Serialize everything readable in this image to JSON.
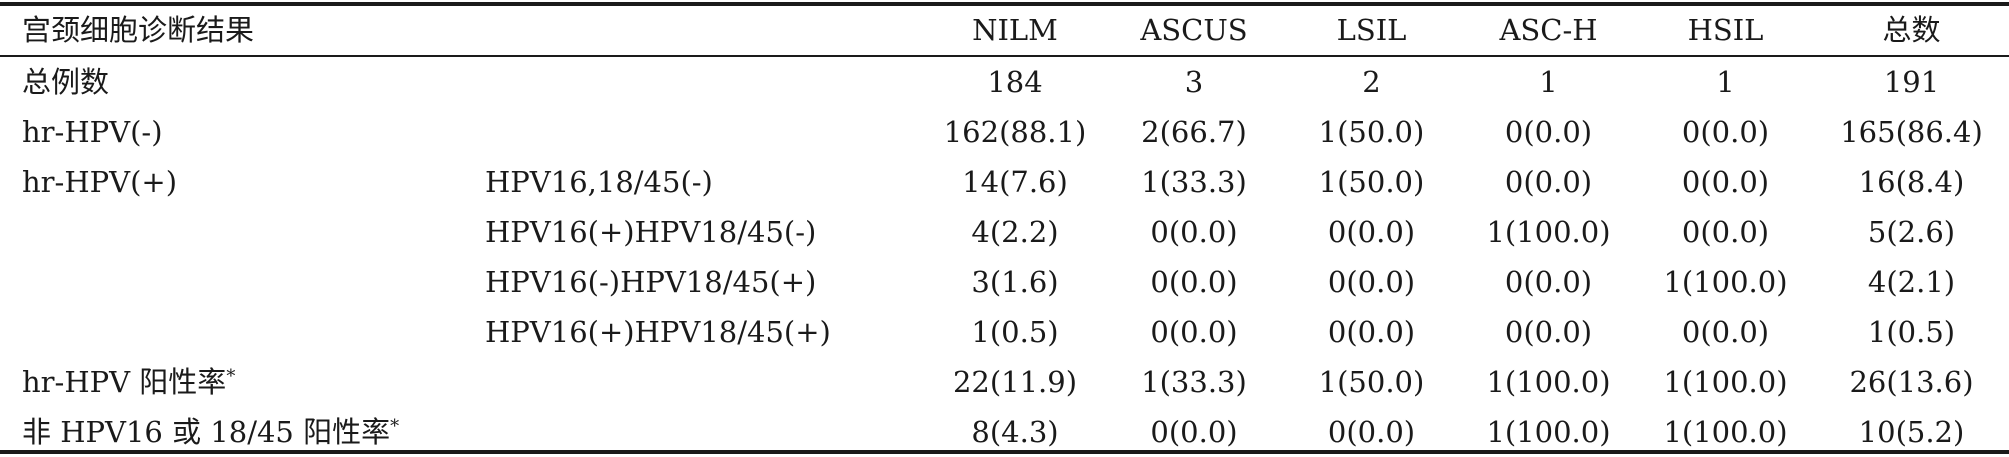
{
  "header": {
    "col0": "宫颈细胞诊断结果",
    "cols": [
      "NILM",
      "ASCUS",
      "LSIL",
      "ASC-H",
      "HSIL",
      "总数"
    ]
  },
  "rows": [
    {
      "label": "总例数",
      "sub": "",
      "vals": [
        "184",
        "3",
        "2",
        "1",
        "1",
        "191"
      ]
    },
    {
      "label": "hr-HPV(-)",
      "sub": "",
      "vals": [
        "162(88.1)",
        "2(66.7)",
        "1(50.0)",
        "0(0.0)",
        "0(0.0)",
        "165(86.4)"
      ]
    },
    {
      "label": "hr-HPV(+)",
      "sub": "HPV16,18/45(-)",
      "vals": [
        "14(7.6)",
        "1(33.3)",
        "1(50.0)",
        "0(0.0)",
        "0(0.0)",
        "16(8.4)"
      ]
    },
    {
      "label": "",
      "sub": "HPV16(+)HPV18/45(-)",
      "vals": [
        "4(2.2)",
        "0(0.0)",
        "0(0.0)",
        "1(100.0)",
        "0(0.0)",
        "5(2.6)"
      ]
    },
    {
      "label": "",
      "sub": "HPV16(-)HPV18/45(+)",
      "vals": [
        "3(1.6)",
        "0(0.0)",
        "0(0.0)",
        "0(0.0)",
        "1(100.0)",
        "4(2.1)"
      ]
    },
    {
      "label": "",
      "sub": "HPV16(+)HPV18/45(+)",
      "vals": [
        "1(0.5)",
        "0(0.0)",
        "0(0.0)",
        "0(0.0)",
        "0(0.0)",
        "1(0.5)"
      ]
    },
    {
      "label": "hr-HPV 阳性率",
      "mark": "*",
      "sub": "",
      "vals": [
        "22(11.9)",
        "1(33.3)",
        "1(50.0)",
        "1(100.0)",
        "1(100.0)",
        "26(13.6)"
      ]
    },
    {
      "label": "非 HPV16 或 18/45 阳性率",
      "mark": "*",
      "sub": "",
      "vals": [
        "8(4.3)",
        "0(0.0)",
        "0(0.0)",
        "1(100.0)",
        "1(100.0)",
        "10(5.2)"
      ]
    }
  ]
}
